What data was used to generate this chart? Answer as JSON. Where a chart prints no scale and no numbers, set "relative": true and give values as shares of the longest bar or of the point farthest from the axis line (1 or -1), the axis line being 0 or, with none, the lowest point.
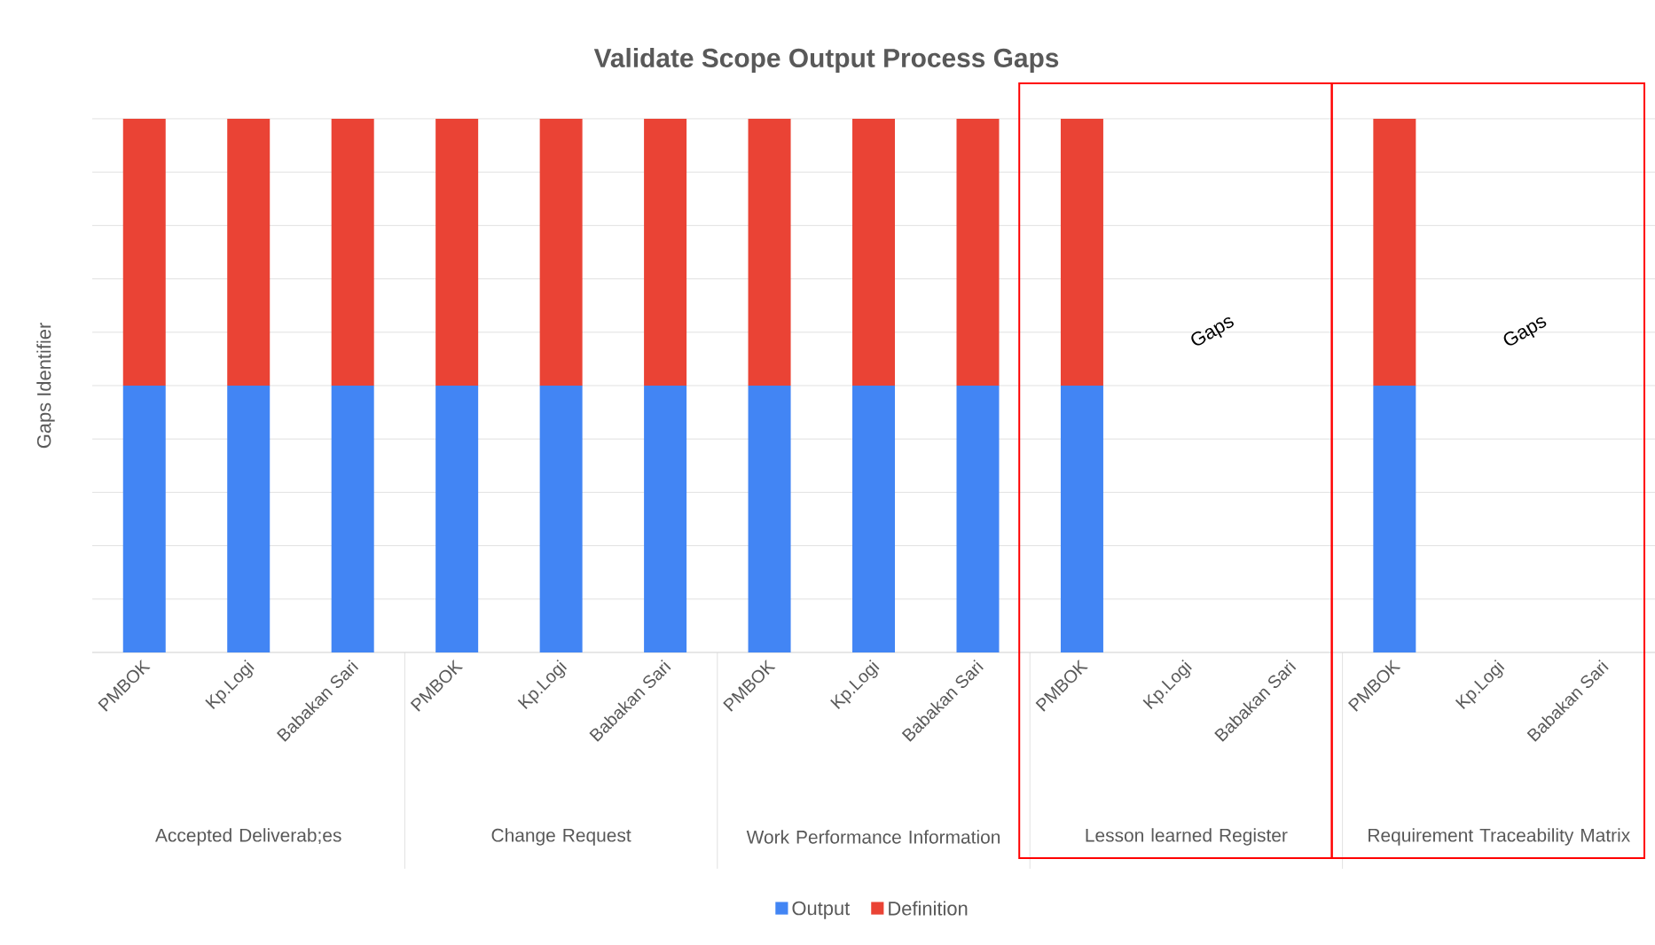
{
  "chart_data": {
    "type": "bar",
    "title": "Validate Scope Output Process Gaps",
    "ylabel": "Gaps Identifier",
    "categories": [
      "PMBOK",
      "Kp.Logi",
      "Babakan Sari",
      "PMBOK",
      "Kp.Logi",
      "Babakan Sari",
      "PMBOK",
      "Kp.Logi",
      "Babakan Sari",
      "PMBOK",
      "Kp.Logi",
      "Babakan Sari",
      "PMBOK",
      "Kp.Logi",
      "Babakan Sari"
    ],
    "series": [
      {
        "name": "Output",
        "color": "#4285f4",
        "values": [
          0.5,
          0.5,
          0.5,
          0.5,
          0.5,
          0.5,
          0.5,
          0.5,
          0.5,
          0.5,
          null,
          null,
          0.5,
          null,
          null
        ]
      },
      {
        "name": "Definition",
        "color": "#ea4335",
        "values": [
          0.5,
          0.5,
          0.5,
          0.5,
          0.5,
          0.5,
          0.5,
          0.5,
          0.5,
          0.5,
          null,
          null,
          0.5,
          null,
          null
        ]
      }
    ],
    "stacked": true,
    "relative": true,
    "grid": "y",
    "legend": "bottom",
    "annotations": [
      "Accepted Deliverab;es",
      "Change Request",
      "Work Performance Information",
      "Lesson learned Register",
      "Requirement Traceability Matrix",
      "Gaps",
      "Gaps"
    ]
  }
}
